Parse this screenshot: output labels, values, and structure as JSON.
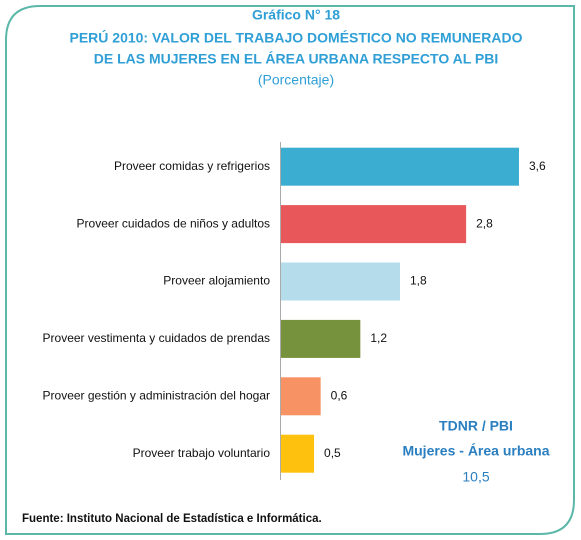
{
  "chart_data": {
    "type": "bar",
    "orientation": "horizontal",
    "title": "Gráfico N° 18",
    "subtitle": [
      "PERÚ 2010: VALOR DEL TRABAJO DOMÉSTICO NO REMUNERADO",
      "DE LAS MUJERES EN EL ÁREA URBANA RESPECTO AL PBI",
      "(Porcentaje)"
    ],
    "categories": [
      "Proveer comidas y refrigerios",
      "Proveer cuidados de niños y adultos",
      "Proveer alojamiento",
      "Proveer vestimenta y cuidados de prendas",
      "Proveer gestión y administración del hogar",
      "Proveer trabajo voluntario"
    ],
    "values": [
      3.6,
      2.8,
      1.8,
      1.2,
      0.6,
      0.5
    ],
    "value_labels": [
      "3,6",
      "2,8",
      "1,8",
      "1,2",
      "0,6",
      "0,5"
    ],
    "colors": [
      "#3aadd0",
      "#e8575a",
      "#b5dceb",
      "#76923c",
      "#f79264",
      "#fdc10e"
    ],
    "annotations": [
      "TDNR / PBI",
      "Mujeres - Área urbana",
      "10,5"
    ],
    "source": "Fuente: Instituto Nacional de Estadística e Informática."
  }
}
